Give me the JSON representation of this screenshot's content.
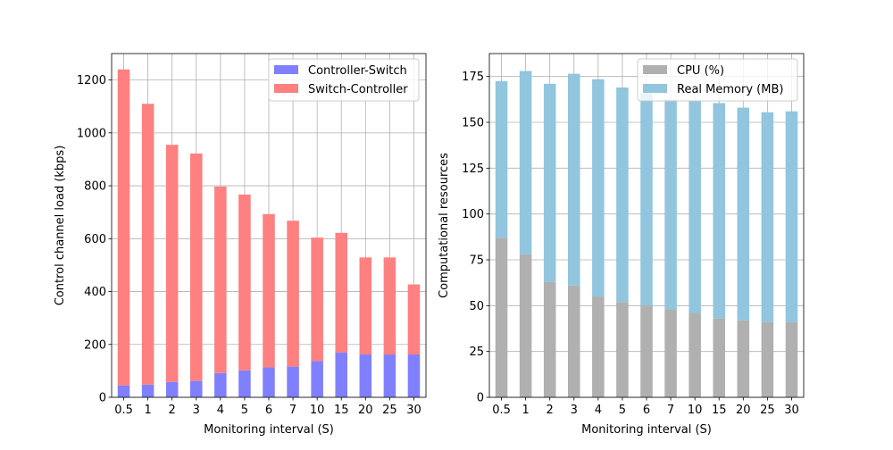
{
  "chart_data": [
    {
      "type": "bar",
      "stacked": true,
      "categories": [
        "0.5",
        "1",
        "2",
        "3",
        "4",
        "5",
        "6",
        "7",
        "10",
        "15",
        "20",
        "25",
        "30"
      ],
      "series": [
        {
          "name": "Controller-Switch",
          "color": "#8080ff",
          "values": [
            45,
            48,
            58,
            62,
            92,
            102,
            113,
            116,
            137,
            170,
            162,
            162,
            162
          ]
        },
        {
          "name": "Switch-Controller",
          "color": "#ff8080",
          "values": [
            1195,
            1062,
            897,
            860,
            705,
            665,
            580,
            552,
            467,
            452,
            367,
            367,
            265
          ]
        }
      ],
      "xlabel": "Monitoring interval (S)",
      "ylabel": "Control channel load (kbps)",
      "ylim": [
        0,
        1300
      ],
      "yticks": [
        0,
        200,
        400,
        600,
        800,
        1000,
        1200
      ],
      "grid": true,
      "legend_position": "top-right"
    },
    {
      "type": "bar",
      "stacked": true,
      "categories": [
        "0.5",
        "1",
        "2",
        "3",
        "4",
        "5",
        "6",
        "7",
        "10",
        "15",
        "20",
        "25",
        "30"
      ],
      "series": [
        {
          "name": "CPU (%)",
          "color": "#b0b0b0",
          "values": [
            87,
            78,
            63,
            61,
            55,
            52,
            50,
            48,
            46,
            43,
            42,
            41,
            41
          ]
        },
        {
          "name": "Real Memory (MB)",
          "color": "#92c5de",
          "values": [
            85.5,
            100,
            108,
            115.5,
            118.5,
            117,
            116,
            114.5,
            116,
            117.5,
            116,
            114.5,
            115
          ]
        }
      ],
      "xlabel": "Monitoring interval (S)",
      "ylabel": "Computational resources",
      "ylim": [
        0,
        187.5
      ],
      "yticks": [
        0,
        25,
        50,
        75,
        100,
        125,
        150,
        175
      ],
      "grid": true,
      "legend_position": "top-right"
    }
  ]
}
